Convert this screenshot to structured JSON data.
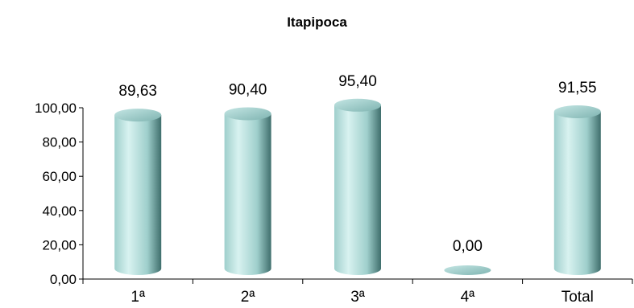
{
  "chart_data": {
    "type": "bar",
    "title": "Itapipoca",
    "xlabel": "",
    "ylabel": "",
    "categories": [
      "1ª",
      "2ª",
      "3ª",
      "4ª",
      "Total"
    ],
    "values": [
      89.63,
      90.4,
      95.4,
      0.0,
      91.55
    ],
    "value_labels": [
      "89,63",
      "90,40",
      "95,40",
      "0,00",
      "91,55"
    ],
    "ylim": [
      0,
      100
    ],
    "yticks": [
      "0,00",
      "20,00",
      "40,00",
      "60,00",
      "80,00",
      "100,00"
    ],
    "grid": false,
    "legend": "none",
    "bar_style": "3d-cylinder",
    "colors": {
      "bar_light": "#d8f2f0",
      "bar_mid": "#9fcfcc",
      "bar_dark": "#3f6e6c",
      "top_light": "#c4e6e4",
      "top_dark": "#7fb4b1"
    }
  }
}
